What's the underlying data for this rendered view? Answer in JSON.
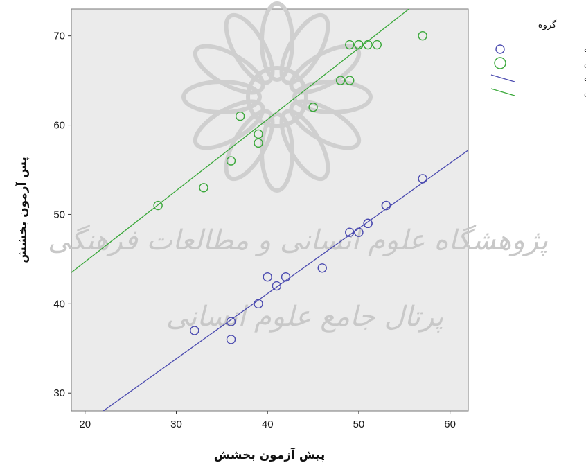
{
  "chart_data": {
    "type": "scatter",
    "xlabel": "پیش آزمون بخشش",
    "ylabel": "پس آزمون بخشش",
    "xlim": [
      18.5,
      62
    ],
    "ylim": [
      28,
      73
    ],
    "x_ticks": [
      20,
      30,
      40,
      50,
      60
    ],
    "y_ticks": [
      30,
      40,
      50,
      60,
      70
    ],
    "grid": false,
    "legend": {
      "title": "گروه",
      "position": "right",
      "entries": [
        {
          "label": "گروه گواه",
          "kind": "marker",
          "color": "#4b4bb0"
        },
        {
          "label": "گروه آزمایش",
          "kind": "marker",
          "color": "#3aa83a"
        },
        {
          "label": "گروه گواه",
          "kind": "line",
          "color": "#4b4bb0"
        },
        {
          "label": "گروه آزمایش",
          "kind": "line",
          "color": "#3aa83a"
        }
      ]
    },
    "series": [
      {
        "name": "گروه گواه",
        "color": "#4b4bb0",
        "points": [
          [
            32,
            37
          ],
          [
            36,
            38
          ],
          [
            36,
            36
          ],
          [
            39,
            40
          ],
          [
            40,
            43
          ],
          [
            41,
            42
          ],
          [
            42,
            43
          ],
          [
            46,
            44
          ],
          [
            49,
            48
          ],
          [
            50,
            48
          ],
          [
            51,
            49
          ],
          [
            51,
            49
          ],
          [
            53,
            51
          ],
          [
            53,
            51
          ],
          [
            57,
            54
          ]
        ],
        "fit_line": [
          [
            22,
            28
          ],
          [
            62,
            57.2
          ]
        ]
      },
      {
        "name": "گروه آزمایش",
        "color": "#3aa83a",
        "points": [
          [
            28,
            51
          ],
          [
            33,
            53
          ],
          [
            36,
            56
          ],
          [
            37,
            61
          ],
          [
            39,
            59
          ],
          [
            39,
            58
          ],
          [
            45,
            62
          ],
          [
            48,
            65
          ],
          [
            49,
            65
          ],
          [
            49,
            69
          ],
          [
            50,
            69
          ],
          [
            50,
            69
          ],
          [
            51,
            69
          ],
          [
            52,
            69
          ],
          [
            57,
            70
          ]
        ],
        "fit_line": [
          [
            18.5,
            43.5
          ],
          [
            55.5,
            73
          ]
        ]
      }
    ]
  },
  "watermark": {
    "line1": "پژوهشگاه علوم انسانی و مطالعات فرهنگی",
    "line2": "پرتال جامع علوم انسانی"
  }
}
